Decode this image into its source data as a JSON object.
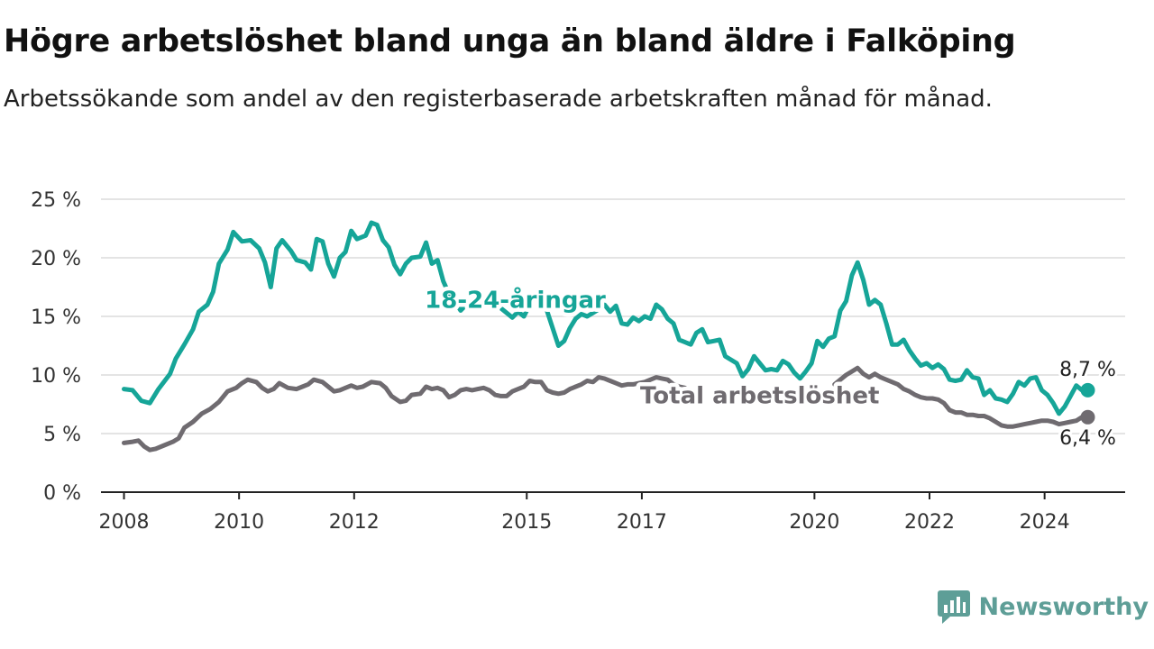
{
  "title": "Högre arbetslöshet bland unga än bland äldre i Falköping",
  "subtitle": "Arbetssökande som andel av den registerbaserade arbetskraften månad för månad.",
  "brand": {
    "name": "Newsworthy",
    "icon": "newsworthy-logo-icon"
  },
  "colors": {
    "youth": "#16a598",
    "total": "#6f6b70",
    "grid": "#dcdcdc",
    "axis": "#222222",
    "brand": "#5e9e97"
  },
  "chart_data": {
    "type": "line",
    "ylim": [
      0,
      25
    ],
    "y_ticks": [
      0,
      5,
      10,
      15,
      20,
      25
    ],
    "y_tick_labels": [
      "0 %",
      "5 %",
      "10 %",
      "15 %",
      "20 %",
      "25 %"
    ],
    "xlim": [
      2007.6,
      2025.4
    ],
    "x_ticks": [
      2008,
      2010,
      2012,
      2015,
      2017,
      2020,
      2022,
      2024
    ],
    "x_tick_labels": [
      "2008",
      "2010",
      "2012",
      "2015",
      "2017",
      "2020",
      "2022",
      "2024"
    ],
    "grid": true,
    "series": [
      {
        "name": "18-24-åringar",
        "color": "#16a598",
        "end_label": "8,7 %",
        "points": [
          [
            2008.0,
            8.8
          ],
          [
            2008.15,
            8.7
          ],
          [
            2008.3,
            7.8
          ],
          [
            2008.45,
            7.6
          ],
          [
            2008.6,
            8.8
          ],
          [
            2008.8,
            10.1
          ],
          [
            2008.9,
            11.4
          ],
          [
            2009.05,
            12.6
          ],
          [
            2009.2,
            13.9
          ],
          [
            2009.3,
            15.4
          ],
          [
            2009.45,
            16.0
          ],
          [
            2009.55,
            17.1
          ],
          [
            2009.65,
            19.5
          ],
          [
            2009.8,
            20.7
          ],
          [
            2009.9,
            22.2
          ],
          [
            2010.05,
            21.4
          ],
          [
            2010.2,
            21.5
          ],
          [
            2010.35,
            20.8
          ],
          [
            2010.45,
            19.6
          ],
          [
            2010.55,
            17.5
          ],
          [
            2010.65,
            20.8
          ],
          [
            2010.75,
            21.5
          ],
          [
            2010.9,
            20.6
          ],
          [
            2011.0,
            19.8
          ],
          [
            2011.15,
            19.6
          ],
          [
            2011.25,
            19.0
          ],
          [
            2011.35,
            21.6
          ],
          [
            2011.45,
            21.4
          ],
          [
            2011.55,
            19.5
          ],
          [
            2011.65,
            18.4
          ],
          [
            2011.75,
            20.0
          ],
          [
            2011.85,
            20.5
          ],
          [
            2011.95,
            22.3
          ],
          [
            2012.05,
            21.6
          ],
          [
            2012.2,
            21.9
          ],
          [
            2012.3,
            23.0
          ],
          [
            2012.4,
            22.8
          ],
          [
            2012.5,
            21.5
          ],
          [
            2012.6,
            20.9
          ],
          [
            2012.7,
            19.4
          ],
          [
            2012.8,
            18.6
          ],
          [
            2012.9,
            19.5
          ],
          [
            2013.0,
            20.0
          ],
          [
            2013.15,
            20.1
          ],
          [
            2013.25,
            21.3
          ],
          [
            2013.35,
            19.5
          ],
          [
            2013.45,
            19.8
          ],
          [
            2013.55,
            18.0
          ],
          [
            2013.65,
            16.9
          ],
          [
            2013.75,
            16.3
          ],
          [
            2013.85,
            15.5
          ],
          [
            2013.95,
            16.0
          ],
          [
            2014.05,
            16.1
          ],
          [
            2014.15,
            16.4
          ],
          [
            2014.25,
            16.2
          ],
          [
            2014.35,
            16.5
          ],
          [
            2014.45,
            15.8
          ],
          [
            2014.55,
            15.7
          ],
          [
            2014.65,
            15.3
          ],
          [
            2014.75,
            14.9
          ],
          [
            2014.85,
            15.4
          ],
          [
            2014.95,
            15.0
          ],
          [
            2015.05,
            16.0
          ],
          [
            2015.15,
            16.3
          ],
          [
            2015.25,
            16.4
          ],
          [
            2015.35,
            15.5
          ],
          [
            2015.45,
            14.0
          ],
          [
            2015.55,
            12.5
          ],
          [
            2015.65,
            12.9
          ],
          [
            2015.75,
            14.0
          ],
          [
            2015.85,
            14.8
          ],
          [
            2015.95,
            15.2
          ],
          [
            2016.05,
            15.0
          ],
          [
            2016.15,
            15.3
          ],
          [
            2016.25,
            15.6
          ],
          [
            2016.35,
            16.0
          ],
          [
            2016.45,
            15.4
          ],
          [
            2016.55,
            15.9
          ],
          [
            2016.65,
            14.4
          ],
          [
            2016.75,
            14.3
          ],
          [
            2016.85,
            14.9
          ],
          [
            2016.95,
            14.6
          ],
          [
            2017.05,
            15.0
          ],
          [
            2017.15,
            14.8
          ],
          [
            2017.25,
            16.0
          ],
          [
            2017.35,
            15.6
          ],
          [
            2017.45,
            14.8
          ],
          [
            2017.55,
            14.4
          ],
          [
            2017.65,
            13.0
          ],
          [
            2017.75,
            12.8
          ],
          [
            2017.85,
            12.6
          ],
          [
            2017.95,
            13.6
          ],
          [
            2018.05,
            13.9
          ],
          [
            2018.15,
            12.8
          ],
          [
            2018.25,
            12.9
          ],
          [
            2018.35,
            13.0
          ],
          [
            2018.45,
            11.6
          ],
          [
            2018.55,
            11.3
          ],
          [
            2018.65,
            11.0
          ],
          [
            2018.75,
            9.9
          ],
          [
            2018.85,
            10.5
          ],
          [
            2018.95,
            11.6
          ],
          [
            2019.05,
            11.0
          ],
          [
            2019.15,
            10.4
          ],
          [
            2019.25,
            10.5
          ],
          [
            2019.35,
            10.4
          ],
          [
            2019.45,
            11.2
          ],
          [
            2019.55,
            10.9
          ],
          [
            2019.65,
            10.2
          ],
          [
            2019.75,
            9.7
          ],
          [
            2019.85,
            10.3
          ],
          [
            2019.95,
            11.0
          ],
          [
            2020.05,
            12.9
          ],
          [
            2020.15,
            12.4
          ],
          [
            2020.25,
            13.1
          ],
          [
            2020.35,
            13.3
          ],
          [
            2020.45,
            15.5
          ],
          [
            2020.55,
            16.3
          ],
          [
            2020.65,
            18.5
          ],
          [
            2020.75,
            19.6
          ],
          [
            2020.85,
            18.1
          ],
          [
            2020.95,
            16.0
          ],
          [
            2021.05,
            16.4
          ],
          [
            2021.15,
            16.0
          ],
          [
            2021.25,
            14.4
          ],
          [
            2021.35,
            12.6
          ],
          [
            2021.45,
            12.6
          ],
          [
            2021.55,
            13.0
          ],
          [
            2021.65,
            12.1
          ],
          [
            2021.75,
            11.4
          ],
          [
            2021.85,
            10.8
          ],
          [
            2021.95,
            11.0
          ],
          [
            2022.05,
            10.6
          ],
          [
            2022.15,
            10.9
          ],
          [
            2022.25,
            10.5
          ],
          [
            2022.35,
            9.6
          ],
          [
            2022.45,
            9.5
          ],
          [
            2022.55,
            9.6
          ],
          [
            2022.65,
            10.4
          ],
          [
            2022.75,
            9.8
          ],
          [
            2022.85,
            9.7
          ],
          [
            2022.95,
            8.3
          ],
          [
            2023.05,
            8.7
          ],
          [
            2023.15,
            8.0
          ],
          [
            2023.25,
            7.9
          ],
          [
            2023.35,
            7.7
          ],
          [
            2023.45,
            8.4
          ],
          [
            2023.55,
            9.4
          ],
          [
            2023.65,
            9.1
          ],
          [
            2023.75,
            9.7
          ],
          [
            2023.85,
            9.8
          ],
          [
            2023.95,
            8.7
          ],
          [
            2024.05,
            8.3
          ],
          [
            2024.15,
            7.6
          ],
          [
            2024.25,
            6.7
          ],
          [
            2024.35,
            7.3
          ],
          [
            2024.45,
            8.2
          ],
          [
            2024.55,
            9.1
          ],
          [
            2024.65,
            8.7
          ],
          [
            2024.75,
            8.7
          ]
        ]
      },
      {
        "name": "Total arbetslöshet",
        "color": "#6f6b70",
        "end_label": "6,4 %",
        "points": [
          [
            2008.0,
            4.2
          ],
          [
            2008.15,
            4.3
          ],
          [
            2008.25,
            4.4
          ],
          [
            2008.35,
            3.9
          ],
          [
            2008.45,
            3.6
          ],
          [
            2008.55,
            3.7
          ],
          [
            2008.7,
            4.0
          ],
          [
            2008.85,
            4.3
          ],
          [
            2008.95,
            4.6
          ],
          [
            2009.05,
            5.5
          ],
          [
            2009.2,
            6.0
          ],
          [
            2009.35,
            6.7
          ],
          [
            2009.5,
            7.1
          ],
          [
            2009.65,
            7.7
          ],
          [
            2009.8,
            8.6
          ],
          [
            2009.95,
            8.9
          ],
          [
            2010.05,
            9.3
          ],
          [
            2010.15,
            9.6
          ],
          [
            2010.3,
            9.4
          ],
          [
            2010.4,
            8.9
          ],
          [
            2010.5,
            8.6
          ],
          [
            2010.6,
            8.8
          ],
          [
            2010.7,
            9.3
          ],
          [
            2010.85,
            8.9
          ],
          [
            2011.0,
            8.8
          ],
          [
            2011.1,
            9.0
          ],
          [
            2011.2,
            9.2
          ],
          [
            2011.3,
            9.6
          ],
          [
            2011.45,
            9.4
          ],
          [
            2011.55,
            9.0
          ],
          [
            2011.65,
            8.6
          ],
          [
            2011.75,
            8.7
          ],
          [
            2011.85,
            8.9
          ],
          [
            2011.95,
            9.1
          ],
          [
            2012.05,
            8.9
          ],
          [
            2012.15,
            9.0
          ],
          [
            2012.3,
            9.4
          ],
          [
            2012.45,
            9.3
          ],
          [
            2012.55,
            8.9
          ],
          [
            2012.65,
            8.2
          ],
          [
            2012.8,
            7.7
          ],
          [
            2012.9,
            7.8
          ],
          [
            2013.0,
            8.3
          ],
          [
            2013.15,
            8.4
          ],
          [
            2013.25,
            9.0
          ],
          [
            2013.35,
            8.8
          ],
          [
            2013.45,
            8.9
          ],
          [
            2013.55,
            8.7
          ],
          [
            2013.65,
            8.1
          ],
          [
            2013.75,
            8.3
          ],
          [
            2013.85,
            8.7
          ],
          [
            2013.95,
            8.8
          ],
          [
            2014.05,
            8.7
          ],
          [
            2014.15,
            8.8
          ],
          [
            2014.25,
            8.9
          ],
          [
            2014.35,
            8.7
          ],
          [
            2014.45,
            8.3
          ],
          [
            2014.55,
            8.2
          ],
          [
            2014.65,
            8.2
          ],
          [
            2014.75,
            8.6
          ],
          [
            2014.85,
            8.8
          ],
          [
            2014.95,
            9.0
          ],
          [
            2015.05,
            9.5
          ],
          [
            2015.15,
            9.4
          ],
          [
            2015.25,
            9.4
          ],
          [
            2015.35,
            8.7
          ],
          [
            2015.45,
            8.5
          ],
          [
            2015.55,
            8.4
          ],
          [
            2015.65,
            8.5
          ],
          [
            2015.75,
            8.8
          ],
          [
            2015.85,
            9.0
          ],
          [
            2015.95,
            9.2
          ],
          [
            2016.05,
            9.5
          ],
          [
            2016.15,
            9.4
          ],
          [
            2016.25,
            9.8
          ],
          [
            2016.35,
            9.7
          ],
          [
            2016.45,
            9.5
          ],
          [
            2016.55,
            9.3
          ],
          [
            2016.65,
            9.1
          ],
          [
            2016.75,
            9.2
          ],
          [
            2016.85,
            9.2
          ],
          [
            2016.95,
            9.3
          ],
          [
            2017.05,
            9.4
          ],
          [
            2017.15,
            9.6
          ],
          [
            2017.25,
            9.8
          ],
          [
            2017.35,
            9.7
          ],
          [
            2017.45,
            9.6
          ],
          [
            2017.55,
            9.2
          ],
          [
            2017.65,
            9.0
          ],
          [
            2017.75,
            8.9
          ],
          [
            2020.35,
            9.2
          ],
          [
            2020.45,
            9.6
          ],
          [
            2020.55,
            10.0
          ],
          [
            2020.65,
            10.3
          ],
          [
            2020.75,
            10.6
          ],
          [
            2020.85,
            10.1
          ],
          [
            2020.95,
            9.8
          ],
          [
            2021.05,
            10.1
          ],
          [
            2021.15,
            9.8
          ],
          [
            2021.25,
            9.6
          ],
          [
            2021.35,
            9.4
          ],
          [
            2021.45,
            9.2
          ],
          [
            2021.55,
            8.8
          ],
          [
            2021.65,
            8.6
          ],
          [
            2021.75,
            8.3
          ],
          [
            2021.85,
            8.1
          ],
          [
            2021.95,
            8.0
          ],
          [
            2022.05,
            8.0
          ],
          [
            2022.15,
            7.9
          ],
          [
            2022.25,
            7.6
          ],
          [
            2022.35,
            7.0
          ],
          [
            2022.45,
            6.8
          ],
          [
            2022.55,
            6.8
          ],
          [
            2022.65,
            6.6
          ],
          [
            2022.75,
            6.6
          ],
          [
            2022.85,
            6.5
          ],
          [
            2022.95,
            6.5
          ],
          [
            2023.05,
            6.3
          ],
          [
            2023.15,
            6.0
          ],
          [
            2023.25,
            5.7
          ],
          [
            2023.35,
            5.6
          ],
          [
            2023.45,
            5.6
          ],
          [
            2023.55,
            5.7
          ],
          [
            2023.65,
            5.8
          ],
          [
            2023.75,
            5.9
          ],
          [
            2023.85,
            6.0
          ],
          [
            2023.95,
            6.1
          ],
          [
            2024.05,
            6.1
          ],
          [
            2024.15,
            6.0
          ],
          [
            2024.25,
            5.8
          ],
          [
            2024.35,
            5.9
          ],
          [
            2024.45,
            6.0
          ],
          [
            2024.55,
            6.1
          ],
          [
            2024.65,
            6.4
          ],
          [
            2024.75,
            6.4
          ]
        ]
      }
    ]
  }
}
